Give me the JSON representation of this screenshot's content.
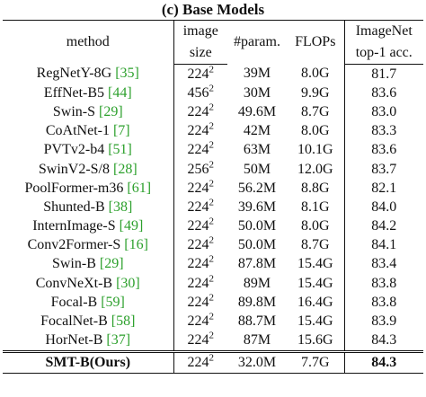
{
  "title": "(c) Base Models",
  "header": [
    "method",
    [
      "image",
      "size"
    ],
    "#param.",
    "FLOPs",
    [
      "ImageNet",
      "top-1 acc."
    ]
  ],
  "rows": [
    {
      "method": "RegNetY-8G",
      "ref": "[35]",
      "size": "224",
      "exp": "2",
      "params": "39M",
      "flops": "8.0G",
      "acc": "81.7"
    },
    {
      "method": "EffNet-B5",
      "ref": "[44]",
      "size": "456",
      "exp": "2",
      "params": "30M",
      "flops": "9.9G",
      "acc": "83.6"
    },
    {
      "method": "Swin-S",
      "ref": "[29]",
      "size": "224",
      "exp": "2",
      "params": "49.6M",
      "flops": "8.7G",
      "acc": "83.0"
    },
    {
      "method": "CoAtNet-1",
      "ref": "[7]",
      "size": "224",
      "exp": "2",
      "params": "42M",
      "flops": "8.0G",
      "acc": "83.3"
    },
    {
      "method": "PVTv2-b4",
      "ref": "[51]",
      "size": "224",
      "exp": "2",
      "params": "63M",
      "flops": "10.1G",
      "acc": "83.6"
    },
    {
      "method": "SwinV2-S/8",
      "ref": "[28]",
      "size": "256",
      "exp": "2",
      "params": "50M",
      "flops": "12.0G",
      "acc": "83.7"
    },
    {
      "method": "PoolFormer-m36",
      "ref": "[61]",
      "size": "224",
      "exp": "2",
      "params": "56.2M",
      "flops": "8.8G",
      "acc": "82.1"
    },
    {
      "method": "Shunted-B",
      "ref": "[38]",
      "size": "224",
      "exp": "2",
      "params": "39.6M",
      "flops": "8.1G",
      "acc": "84.0"
    },
    {
      "method": "InternImage-S",
      "ref": "[49]",
      "size": "224",
      "exp": "2",
      "params": "50.0M",
      "flops": "8.0G",
      "acc": "84.2"
    },
    {
      "method": "Conv2Former-S",
      "ref": "[16]",
      "size": "224",
      "exp": "2",
      "params": "50.0M",
      "flops": "8.7G",
      "acc": "84.1"
    },
    {
      "method": "Swin-B",
      "ref": "[29]",
      "size": "224",
      "exp": "2",
      "params": "87.8M",
      "flops": "15.4G",
      "acc": "83.4"
    },
    {
      "method": "ConvNeXt-B",
      "ref": "[30]",
      "size": "224",
      "exp": "2",
      "params": "89M",
      "flops": "15.4G",
      "acc": "83.8"
    },
    {
      "method": "Focal-B",
      "ref": "[59]",
      "size": "224",
      "exp": "2",
      "params": "89.8M",
      "flops": "16.4G",
      "acc": "83.8"
    },
    {
      "method": "FocalNet-B",
      "ref": "[58]",
      "size": "224",
      "exp": "2",
      "params": "88.7M",
      "flops": "15.4G",
      "acc": "83.9"
    },
    {
      "method": "HorNet-B",
      "ref": "[37]",
      "size": "224",
      "exp": "2",
      "params": "87M",
      "flops": "15.6G",
      "acc": "84.3"
    }
  ],
  "ours": {
    "method": "SMT-B(Ours)",
    "size": "224",
    "exp": "2",
    "params": "32.0M",
    "flops": "7.7G",
    "acc": "84.3"
  }
}
